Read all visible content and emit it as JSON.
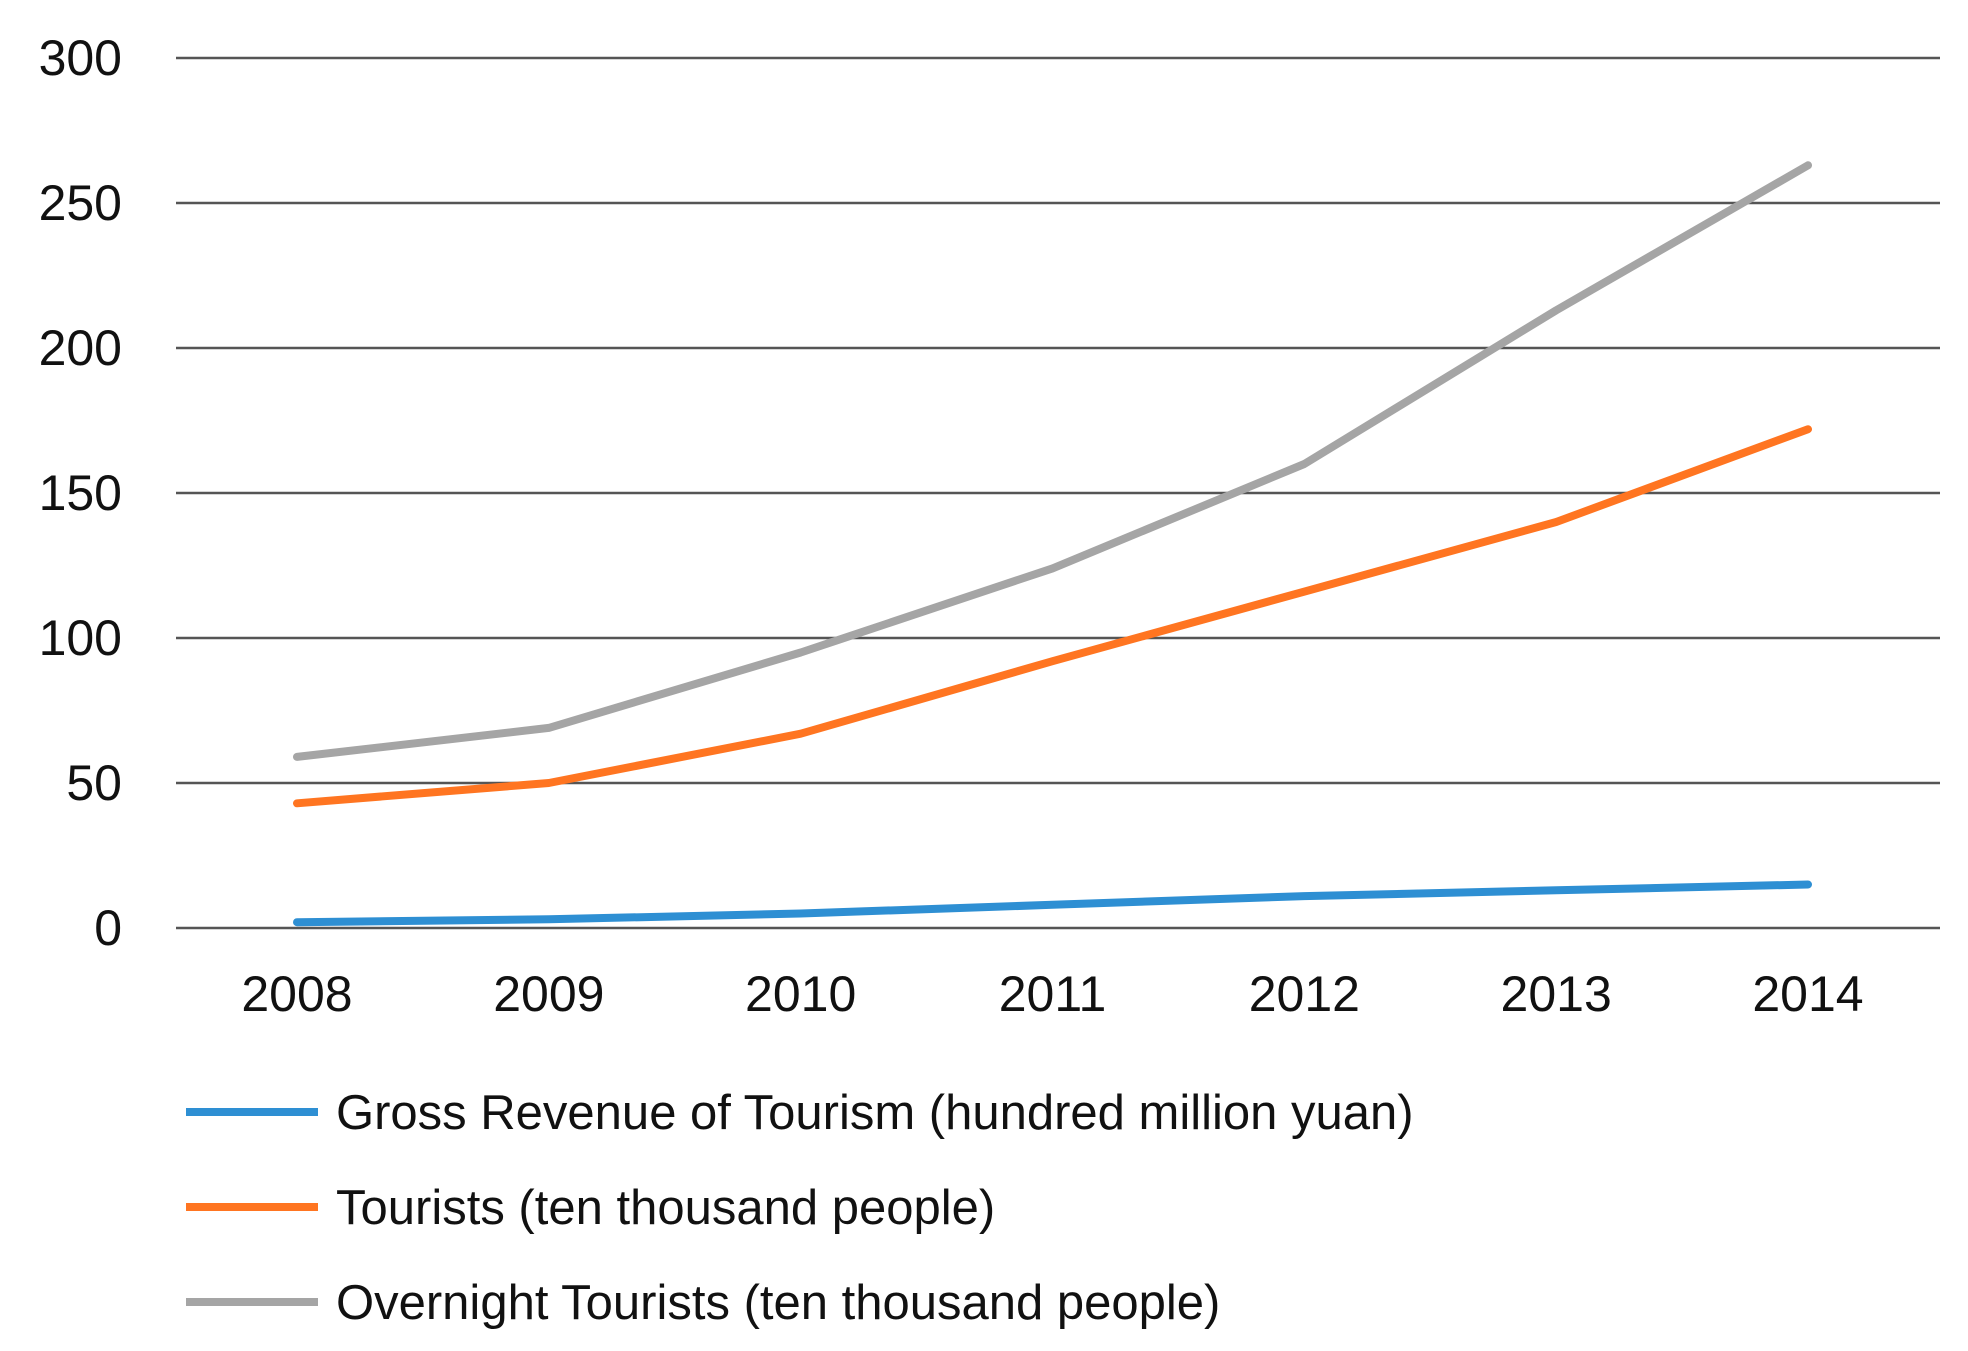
{
  "chart_data": {
    "type": "line",
    "title": "",
    "xlabel": "",
    "ylabel": "",
    "ylim": [
      0,
      300
    ],
    "yticks": [
      "0",
      "50",
      "100",
      "150",
      "200",
      "250",
      "300"
    ],
    "ytick_values": [
      0,
      50,
      100,
      150,
      200,
      250,
      300
    ],
    "grid": true,
    "legend_position": "bottom",
    "categories": [
      "2008",
      "2009",
      "2010",
      "2011",
      "2012",
      "2013",
      "2014"
    ],
    "series": [
      {
        "name": "Gross Revenue of Tourism (hundred million yuan)",
        "color": "#2E8FD3",
        "values": [
          2,
          3,
          5,
          8,
          11,
          13,
          15
        ]
      },
      {
        "name": "Tourists (ten thousand people)",
        "color": "#FF7521",
        "values": [
          43,
          50,
          67,
          92,
          116,
          140,
          172
        ]
      },
      {
        "name": "Overnight Tourists (ten thousand people)",
        "color": "#A5A5A5",
        "values": [
          59,
          69,
          95,
          124,
          160,
          213,
          263
        ]
      }
    ]
  }
}
